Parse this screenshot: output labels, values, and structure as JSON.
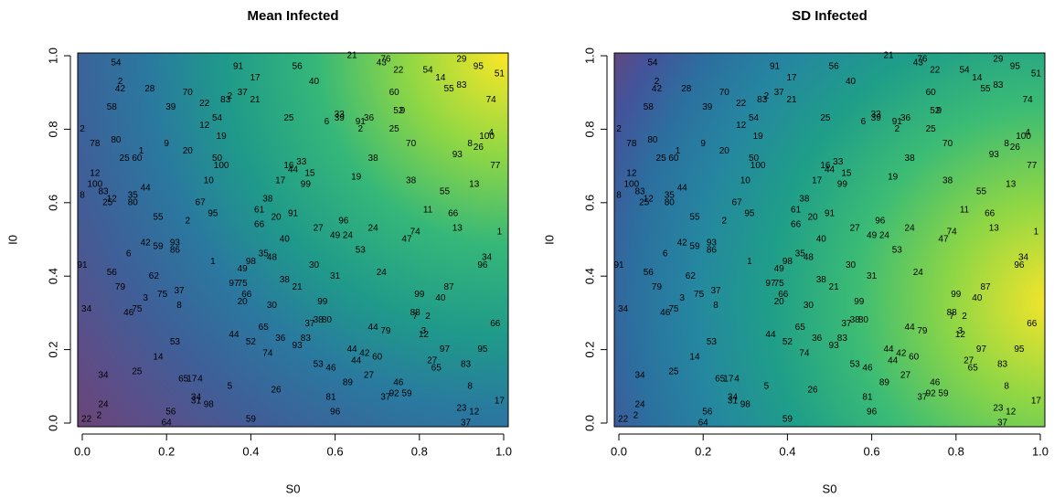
{
  "chart_data": [
    {
      "type": "scatter",
      "title": "Mean Infected",
      "xlabel": "S0",
      "ylabel": "I0",
      "xlim": [
        0,
        1
      ],
      "ylim": [
        0,
        1
      ],
      "xticks": [
        {
          "value": 0,
          "label": "0.0"
        },
        {
          "value": 0.2,
          "label": "0.2"
        },
        {
          "value": 0.4,
          "label": "0.4"
        },
        {
          "value": 0.6,
          "label": "0.6"
        },
        {
          "value": 0.8,
          "label": "0.8"
        },
        {
          "value": 1,
          "label": "1.0"
        }
      ],
      "yticks": [
        {
          "value": 0,
          "label": "0.0"
        },
        {
          "value": 0.2,
          "label": "0.2"
        },
        {
          "value": 0.4,
          "label": "0.4"
        },
        {
          "value": 0.6,
          "label": "0.6"
        },
        {
          "value": 0.8,
          "label": "0.8"
        },
        {
          "value": 1,
          "label": "1.0"
        }
      ],
      "labels": [
        "54",
        "91",
        "56",
        "21",
        "76",
        "43",
        "29",
        "95",
        "51",
        "54",
        "14",
        "22",
        "17",
        "40",
        "2",
        "42",
        "28",
        "55",
        "83",
        "70",
        "2",
        "83",
        "37",
        "22",
        "21",
        "39",
        "60",
        "74",
        "58",
        "52",
        "9",
        "54",
        "12",
        "25",
        "6",
        "33",
        "39",
        "36",
        "91",
        "2",
        "2",
        "25",
        "4",
        "100",
        "19",
        "78",
        "80",
        "9",
        "20",
        "70",
        "8",
        "26",
        "93",
        "1",
        "60",
        "25",
        "50",
        "100",
        "38",
        "33",
        "16",
        "44",
        "15",
        "77",
        "12",
        "17",
        "10",
        "19",
        "38",
        "13",
        "99",
        "100",
        "83",
        "44",
        "8",
        "12",
        "35",
        "55",
        "25",
        "80",
        "38",
        "67",
        "61",
        "11",
        "66",
        "95",
        "20",
        "91",
        "55",
        "2",
        "66",
        "96",
        "27",
        "24",
        "1",
        "13",
        "49",
        "24",
        "74",
        "47",
        "40",
        "42",
        "59",
        "93",
        "86",
        "6",
        "53",
        "34",
        "96",
        "35",
        "48",
        "98",
        "1",
        "91",
        "49",
        "30",
        "24",
        "56",
        "62",
        "31",
        "97",
        "75",
        "38",
        "21",
        "87",
        "79",
        "66",
        "37",
        "75",
        "3",
        "99",
        "40",
        "20",
        "30",
        "99",
        "8",
        "34",
        "75",
        "46",
        "88",
        "7",
        "2",
        "38",
        "80",
        "37",
        "44",
        "79",
        "3",
        "12",
        "66",
        "44",
        "65",
        "36",
        "83",
        "52",
        "93",
        "53",
        "74",
        "44",
        "42",
        "60",
        "97",
        "95",
        "14",
        "44",
        "27",
        "65",
        "83",
        "53",
        "46",
        "25",
        "34",
        "27",
        "65",
        "17",
        "4",
        "89",
        "5",
        "46",
        "26",
        "8",
        "34",
        "37",
        "92",
        "59",
        "81",
        "31",
        "98",
        "17",
        "24",
        "23",
        "12",
        "56",
        "96",
        "2",
        "22",
        "59",
        "37",
        "64"
      ],
      "x": [
        0.08,
        0.37,
        0.51,
        0.64,
        0.72,
        0.71,
        0.9,
        0.94,
        0.99,
        0.82,
        0.85,
        0.75,
        0.41,
        0.55,
        0.09,
        0.09,
        0.16,
        0.87,
        0.9,
        0.25,
        0.35,
        0.34,
        0.38,
        0.29,
        0.41,
        0.21,
        0.74,
        0.97,
        0.07,
        0.75,
        0.76,
        0.32,
        0.29,
        0.49,
        0.58,
        0.61,
        0.61,
        0.68,
        0.66,
        0.66,
        0.0,
        0.74,
        0.97,
        0.96,
        0.33,
        0.03,
        0.08,
        0.2,
        0.25,
        0.78,
        0.92,
        0.94,
        0.89,
        0.14,
        0.13,
        0.1,
        0.32,
        0.33,
        0.69,
        0.52,
        0.49,
        0.5,
        0.54,
        0.98,
        0.03,
        0.47,
        0.3,
        0.65,
        0.78,
        0.93,
        0.53,
        0.03,
        0.05,
        0.15,
        0.0,
        0.07,
        0.12,
        0.86,
        0.06,
        0.12,
        0.44,
        0.28,
        0.42,
        0.82,
        0.88,
        0.31,
        0.46,
        0.5,
        0.18,
        0.25,
        0.42,
        0.62,
        0.56,
        0.69,
        0.99,
        0.89,
        0.6,
        0.63,
        0.79,
        0.77,
        0.48,
        0.15,
        0.18,
        0.22,
        0.22,
        0.11,
        0.66,
        0.96,
        0.95,
        0.43,
        0.45,
        0.4,
        0.31,
        0.0,
        0.38,
        0.55,
        0.71,
        0.07,
        0.17,
        0.6,
        0.36,
        0.38,
        0.48,
        0.51,
        0.87,
        0.09,
        0.39,
        0.23,
        0.19,
        0.15,
        0.8,
        0.85,
        0.38,
        0.45,
        0.57,
        0.23,
        0.01,
        0.13,
        0.11,
        0.79,
        0.79,
        0.82,
        0.56,
        0.58,
        0.54,
        0.69,
        0.72,
        0.81,
        0.81,
        0.98,
        0.36,
        0.43,
        0.47,
        0.53,
        0.4,
        0.51,
        0.22,
        0.44,
        0.64,
        0.67,
        0.7,
        0.86,
        0.95,
        0.18,
        0.65,
        0.83,
        0.84,
        0.91,
        0.56,
        0.59,
        0.13,
        0.05,
        0.68,
        0.24,
        0.26,
        0.28,
        0.63,
        0.35,
        0.75,
        0.46,
        0.92,
        0.27,
        0.72,
        0.74,
        0.77,
        0.59,
        0.27,
        0.3,
        0.99,
        0.05,
        0.9,
        0.93,
        0.21,
        0.6,
        0.04,
        0.01,
        0.4,
        0.91,
        0.2
      ],
      "y": [
        0.98,
        0.97,
        0.97,
        1.0,
        0.99,
        0.98,
        0.99,
        0.97,
        0.95,
        0.96,
        0.94,
        0.96,
        0.94,
        0.93,
        0.93,
        0.91,
        0.91,
        0.91,
        0.92,
        0.9,
        0.89,
        0.88,
        0.9,
        0.87,
        0.88,
        0.86,
        0.9,
        0.88,
        0.86,
        0.85,
        0.85,
        0.83,
        0.81,
        0.83,
        0.82,
        0.84,
        0.83,
        0.83,
        0.82,
        0.8,
        0.8,
        0.8,
        0.79,
        0.78,
        0.78,
        0.76,
        0.77,
        0.76,
        0.74,
        0.76,
        0.76,
        0.75,
        0.73,
        0.74,
        0.72,
        0.72,
        0.72,
        0.7,
        0.72,
        0.71,
        0.7,
        0.69,
        0.68,
        0.7,
        0.68,
        0.66,
        0.66,
        0.67,
        0.66,
        0.65,
        0.65,
        0.65,
        0.63,
        0.64,
        0.62,
        0.61,
        0.62,
        0.63,
        0.6,
        0.6,
        0.61,
        0.6,
        0.58,
        0.58,
        0.57,
        0.57,
        0.56,
        0.57,
        0.56,
        0.55,
        0.54,
        0.55,
        0.53,
        0.53,
        0.52,
        0.53,
        0.51,
        0.51,
        0.52,
        0.5,
        0.5,
        0.49,
        0.48,
        0.49,
        0.47,
        0.46,
        0.47,
        0.45,
        0.43,
        0.46,
        0.45,
        0.44,
        0.44,
        0.43,
        0.42,
        0.43,
        0.41,
        0.41,
        0.4,
        0.4,
        0.38,
        0.38,
        0.39,
        0.37,
        0.37,
        0.37,
        0.35,
        0.36,
        0.35,
        0.34,
        0.35,
        0.34,
        0.33,
        0.32,
        0.33,
        0.32,
        0.31,
        0.31,
        0.3,
        0.3,
        0.29,
        0.29,
        0.28,
        0.28,
        0.27,
        0.26,
        0.25,
        0.25,
        0.24,
        0.27,
        0.24,
        0.26,
        0.23,
        0.23,
        0.22,
        0.21,
        0.22,
        0.19,
        0.2,
        0.19,
        0.18,
        0.2,
        0.2,
        0.18,
        0.17,
        0.17,
        0.15,
        0.16,
        0.16,
        0.15,
        0.14,
        0.13,
        0.13,
        0.12,
        0.12,
        0.12,
        0.11,
        0.1,
        0.11,
        0.09,
        0.1,
        0.07,
        0.07,
        0.08,
        0.08,
        0.07,
        0.06,
        0.05,
        0.06,
        0.05,
        0.04,
        0.03,
        0.03,
        0.03,
        0.02,
        0.01,
        0.01,
        0.0,
        0.0
      ]
    },
    {
      "type": "scatter",
      "title": "SD Infected",
      "xlabel": "S0",
      "ylabel": "I0",
      "xlim": [
        0,
        1
      ],
      "ylim": [
        0,
        1
      ],
      "xticks": [
        {
          "value": 0,
          "label": "0.0"
        },
        {
          "value": 0.2,
          "label": "0.2"
        },
        {
          "value": 0.4,
          "label": "0.4"
        },
        {
          "value": 0.6,
          "label": "0.6"
        },
        {
          "value": 0.8,
          "label": "0.8"
        },
        {
          "value": 1,
          "label": "1.0"
        }
      ],
      "yticks": [
        {
          "value": 0,
          "label": "0.0"
        },
        {
          "value": 0.2,
          "label": "0.2"
        },
        {
          "value": 0.4,
          "label": "0.4"
        },
        {
          "value": 0.6,
          "label": "0.6"
        },
        {
          "value": 0.8,
          "label": "0.8"
        },
        {
          "value": 1,
          "label": "1.0"
        }
      ],
      "labels": [
        "54",
        "91",
        "56",
        "21",
        "76",
        "43",
        "29",
        "95",
        "51",
        "54",
        "14",
        "22",
        "17",
        "40",
        "2",
        "42",
        "28",
        "55",
        "83",
        "70",
        "2",
        "83",
        "37",
        "22",
        "21",
        "39",
        "60",
        "74",
        "58",
        "52",
        "9",
        "54",
        "12",
        "25",
        "6",
        "33",
        "39",
        "36",
        "91",
        "2",
        "2",
        "25",
        "4",
        "100",
        "19",
        "78",
        "80",
        "9",
        "20",
        "70",
        "8",
        "26",
        "93",
        "1",
        "60",
        "25",
        "50",
        "100",
        "38",
        "33",
        "16",
        "44",
        "15",
        "77",
        "12",
        "17",
        "10",
        "19",
        "38",
        "13",
        "99",
        "100",
        "83",
        "44",
        "8",
        "12",
        "35",
        "55",
        "25",
        "80",
        "38",
        "67",
        "61",
        "11",
        "66",
        "95",
        "20",
        "91",
        "55",
        "2",
        "66",
        "96",
        "27",
        "24",
        "1",
        "13",
        "49",
        "24",
        "74",
        "47",
        "40",
        "42",
        "59",
        "93",
        "86",
        "6",
        "53",
        "34",
        "96",
        "35",
        "48",
        "98",
        "1",
        "91",
        "49",
        "30",
        "24",
        "56",
        "62",
        "31",
        "97",
        "75",
        "38",
        "21",
        "87",
        "79",
        "66",
        "37",
        "75",
        "3",
        "99",
        "40",
        "20",
        "30",
        "99",
        "8",
        "34",
        "75",
        "46",
        "88",
        "7",
        "2",
        "38",
        "80",
        "37",
        "44",
        "79",
        "3",
        "12",
        "66",
        "44",
        "65",
        "36",
        "83",
        "52",
        "93",
        "53",
        "74",
        "44",
        "42",
        "60",
        "97",
        "95",
        "14",
        "44",
        "27",
        "65",
        "83",
        "53",
        "46",
        "25",
        "34",
        "27",
        "65",
        "17",
        "4",
        "89",
        "5",
        "46",
        "26",
        "8",
        "34",
        "37",
        "92",
        "59",
        "81",
        "31",
        "98",
        "17",
        "24",
        "23",
        "12",
        "56",
        "96",
        "2",
        "22",
        "59",
        "37",
        "64"
      ],
      "x": [
        0.08,
        0.37,
        0.51,
        0.64,
        0.72,
        0.71,
        0.9,
        0.94,
        0.99,
        0.82,
        0.85,
        0.75,
        0.41,
        0.55,
        0.09,
        0.09,
        0.16,
        0.87,
        0.9,
        0.25,
        0.35,
        0.34,
        0.38,
        0.29,
        0.41,
        0.21,
        0.74,
        0.97,
        0.07,
        0.75,
        0.76,
        0.32,
        0.29,
        0.49,
        0.58,
        0.61,
        0.61,
        0.68,
        0.66,
        0.66,
        0.0,
        0.74,
        0.97,
        0.96,
        0.33,
        0.03,
        0.08,
        0.2,
        0.25,
        0.78,
        0.92,
        0.94,
        0.89,
        0.14,
        0.13,
        0.1,
        0.32,
        0.33,
        0.69,
        0.52,
        0.49,
        0.5,
        0.54,
        0.98,
        0.03,
        0.47,
        0.3,
        0.65,
        0.78,
        0.93,
        0.53,
        0.03,
        0.05,
        0.15,
        0.0,
        0.07,
        0.12,
        0.86,
        0.06,
        0.12,
        0.44,
        0.28,
        0.42,
        0.82,
        0.88,
        0.31,
        0.46,
        0.5,
        0.18,
        0.25,
        0.42,
        0.62,
        0.56,
        0.69,
        0.99,
        0.89,
        0.6,
        0.63,
        0.79,
        0.77,
        0.48,
        0.15,
        0.18,
        0.22,
        0.22,
        0.11,
        0.66,
        0.96,
        0.95,
        0.43,
        0.45,
        0.4,
        0.31,
        0.0,
        0.38,
        0.55,
        0.71,
        0.07,
        0.17,
        0.6,
        0.36,
        0.38,
        0.48,
        0.51,
        0.87,
        0.09,
        0.39,
        0.23,
        0.19,
        0.15,
        0.8,
        0.85,
        0.38,
        0.45,
        0.57,
        0.23,
        0.01,
        0.13,
        0.11,
        0.79,
        0.79,
        0.82,
        0.56,
        0.58,
        0.54,
        0.69,
        0.72,
        0.81,
        0.81,
        0.98,
        0.36,
        0.43,
        0.47,
        0.53,
        0.4,
        0.51,
        0.22,
        0.44,
        0.64,
        0.67,
        0.7,
        0.86,
        0.95,
        0.18,
        0.65,
        0.83,
        0.84,
        0.91,
        0.56,
        0.59,
        0.13,
        0.05,
        0.68,
        0.24,
        0.26,
        0.28,
        0.63,
        0.35,
        0.75,
        0.46,
        0.92,
        0.27,
        0.72,
        0.74,
        0.77,
        0.59,
        0.27,
        0.3,
        0.99,
        0.05,
        0.9,
        0.93,
        0.21,
        0.6,
        0.04,
        0.01,
        0.4,
        0.91,
        0.2
      ],
      "y": [
        0.98,
        0.97,
        0.97,
        1.0,
        0.99,
        0.98,
        0.99,
        0.97,
        0.95,
        0.96,
        0.94,
        0.96,
        0.94,
        0.93,
        0.93,
        0.91,
        0.91,
        0.91,
        0.92,
        0.9,
        0.89,
        0.88,
        0.9,
        0.87,
        0.88,
        0.86,
        0.9,
        0.88,
        0.86,
        0.85,
        0.85,
        0.83,
        0.81,
        0.83,
        0.82,
        0.84,
        0.83,
        0.83,
        0.82,
        0.8,
        0.8,
        0.8,
        0.79,
        0.78,
        0.78,
        0.76,
        0.77,
        0.76,
        0.74,
        0.76,
        0.76,
        0.75,
        0.73,
        0.74,
        0.72,
        0.72,
        0.72,
        0.7,
        0.72,
        0.71,
        0.7,
        0.69,
        0.68,
        0.7,
        0.68,
        0.66,
        0.66,
        0.67,
        0.66,
        0.65,
        0.65,
        0.65,
        0.63,
        0.64,
        0.62,
        0.61,
        0.62,
        0.63,
        0.6,
        0.6,
        0.61,
        0.6,
        0.58,
        0.58,
        0.57,
        0.57,
        0.56,
        0.57,
        0.56,
        0.55,
        0.54,
        0.55,
        0.53,
        0.53,
        0.52,
        0.53,
        0.51,
        0.51,
        0.52,
        0.5,
        0.5,
        0.49,
        0.48,
        0.49,
        0.47,
        0.46,
        0.47,
        0.45,
        0.43,
        0.46,
        0.45,
        0.44,
        0.44,
        0.43,
        0.42,
        0.43,
        0.41,
        0.41,
        0.4,
        0.4,
        0.38,
        0.38,
        0.39,
        0.37,
        0.37,
        0.37,
        0.35,
        0.36,
        0.35,
        0.34,
        0.35,
        0.34,
        0.33,
        0.32,
        0.33,
        0.32,
        0.31,
        0.31,
        0.3,
        0.3,
        0.29,
        0.29,
        0.28,
        0.28,
        0.27,
        0.26,
        0.25,
        0.25,
        0.24,
        0.27,
        0.24,
        0.26,
        0.23,
        0.23,
        0.22,
        0.21,
        0.22,
        0.19,
        0.2,
        0.19,
        0.18,
        0.2,
        0.2,
        0.18,
        0.17,
        0.17,
        0.15,
        0.16,
        0.16,
        0.15,
        0.14,
        0.13,
        0.13,
        0.12,
        0.12,
        0.12,
        0.11,
        0.1,
        0.11,
        0.09,
        0.1,
        0.07,
        0.07,
        0.08,
        0.08,
        0.07,
        0.06,
        0.05,
        0.06,
        0.05,
        0.04,
        0.03,
        0.03,
        0.03,
        0.02,
        0.01,
        0.01,
        0.0,
        0.0
      ]
    }
  ]
}
